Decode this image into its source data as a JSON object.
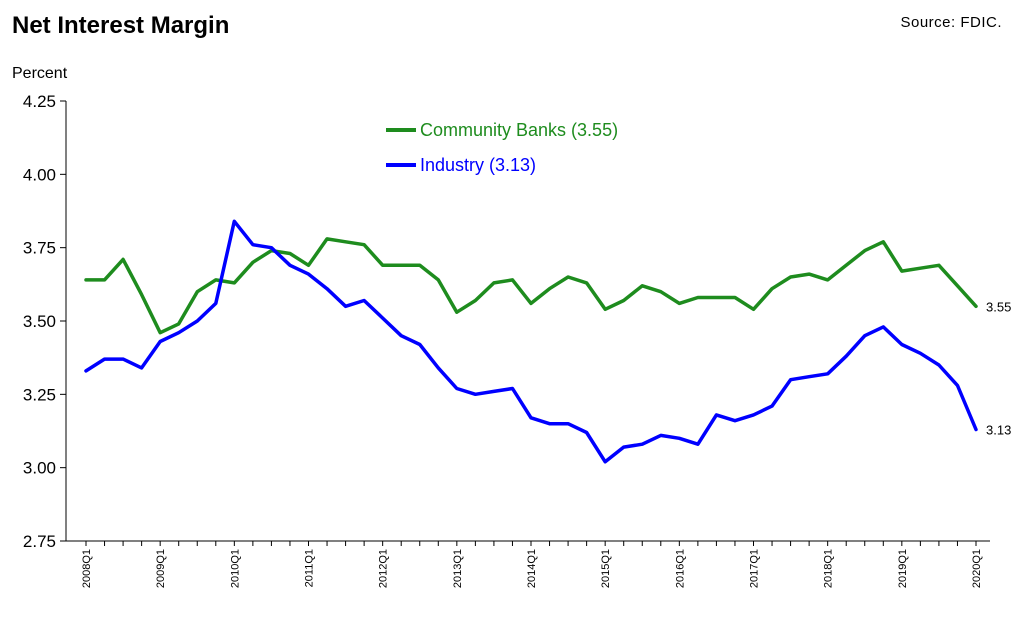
{
  "header": {
    "title": "Net Interest Margin",
    "source": "Source: FDIC."
  },
  "chart_data": {
    "type": "line",
    "title": "Net Interest Margin",
    "ylabel": "Percent",
    "xlabel": "",
    "ylim": [
      2.75,
      4.25
    ],
    "yticks": [
      "4.25",
      "4.00",
      "3.75",
      "3.50",
      "3.25",
      "3.00",
      "2.75"
    ],
    "grid": false,
    "legend_position": "top-center",
    "x": [
      "2008Q1",
      "2008Q2",
      "2008Q3",
      "2008Q4",
      "2009Q1",
      "2009Q2",
      "2009Q3",
      "2009Q4",
      "2010Q1",
      "2010Q2",
      "2010Q3",
      "2010Q4",
      "2011Q1",
      "2011Q2",
      "2011Q3",
      "2011Q4",
      "2012Q1",
      "2012Q2",
      "2012Q3",
      "2012Q4",
      "2013Q1",
      "2013Q2",
      "2013Q3",
      "2013Q4",
      "2014Q1",
      "2014Q2",
      "2014Q3",
      "2014Q4",
      "2015Q1",
      "2015Q2",
      "2015Q3",
      "2015Q4",
      "2016Q1",
      "2016Q2",
      "2016Q3",
      "2016Q4",
      "2017Q1",
      "2017Q2",
      "2017Q3",
      "2017Q4",
      "2018Q1",
      "2018Q2",
      "2018Q3",
      "2018Q4",
      "2019Q1",
      "2019Q2",
      "2019Q3",
      "2019Q4",
      "2020Q1"
    ],
    "xtick_labels": [
      "2008Q1",
      "2009Q1",
      "2010Q1",
      "2011Q1",
      "2012Q1",
      "2013Q1",
      "2014Q1",
      "2015Q1",
      "2016Q1",
      "2017Q1",
      "2018Q1",
      "2019Q1",
      "2020Q1"
    ],
    "series": [
      {
        "name": "Community Banks (3.55)",
        "color": "#1e8c1e",
        "end_label": "3.55",
        "values": [
          3.64,
          3.64,
          3.71,
          3.59,
          3.46,
          3.49,
          3.6,
          3.64,
          3.63,
          3.7,
          3.74,
          3.73,
          3.69,
          3.78,
          3.77,
          3.76,
          3.69,
          3.69,
          3.69,
          3.64,
          3.53,
          3.57,
          3.63,
          3.64,
          3.56,
          3.61,
          3.65,
          3.63,
          3.54,
          3.57,
          3.62,
          3.6,
          3.56,
          3.58,
          3.58,
          3.58,
          3.54,
          3.61,
          3.65,
          3.66,
          3.64,
          3.69,
          3.74,
          3.77,
          3.67,
          3.68,
          3.69,
          3.62,
          3.55
        ]
      },
      {
        "name": "Industry (3.13)",
        "color": "#0000ff",
        "end_label": "3.13",
        "values": [
          3.33,
          3.37,
          3.37,
          3.34,
          3.43,
          3.46,
          3.5,
          3.56,
          3.84,
          3.76,
          3.75,
          3.69,
          3.66,
          3.61,
          3.55,
          3.57,
          3.51,
          3.45,
          3.42,
          3.34,
          3.27,
          3.25,
          3.26,
          3.27,
          3.17,
          3.15,
          3.15,
          3.12,
          3.02,
          3.07,
          3.08,
          3.11,
          3.1,
          3.08,
          3.18,
          3.16,
          3.18,
          3.21,
          3.3,
          3.31,
          3.32,
          3.38,
          3.45,
          3.48,
          3.42,
          3.39,
          3.35,
          3.28,
          3.13
        ]
      }
    ]
  }
}
